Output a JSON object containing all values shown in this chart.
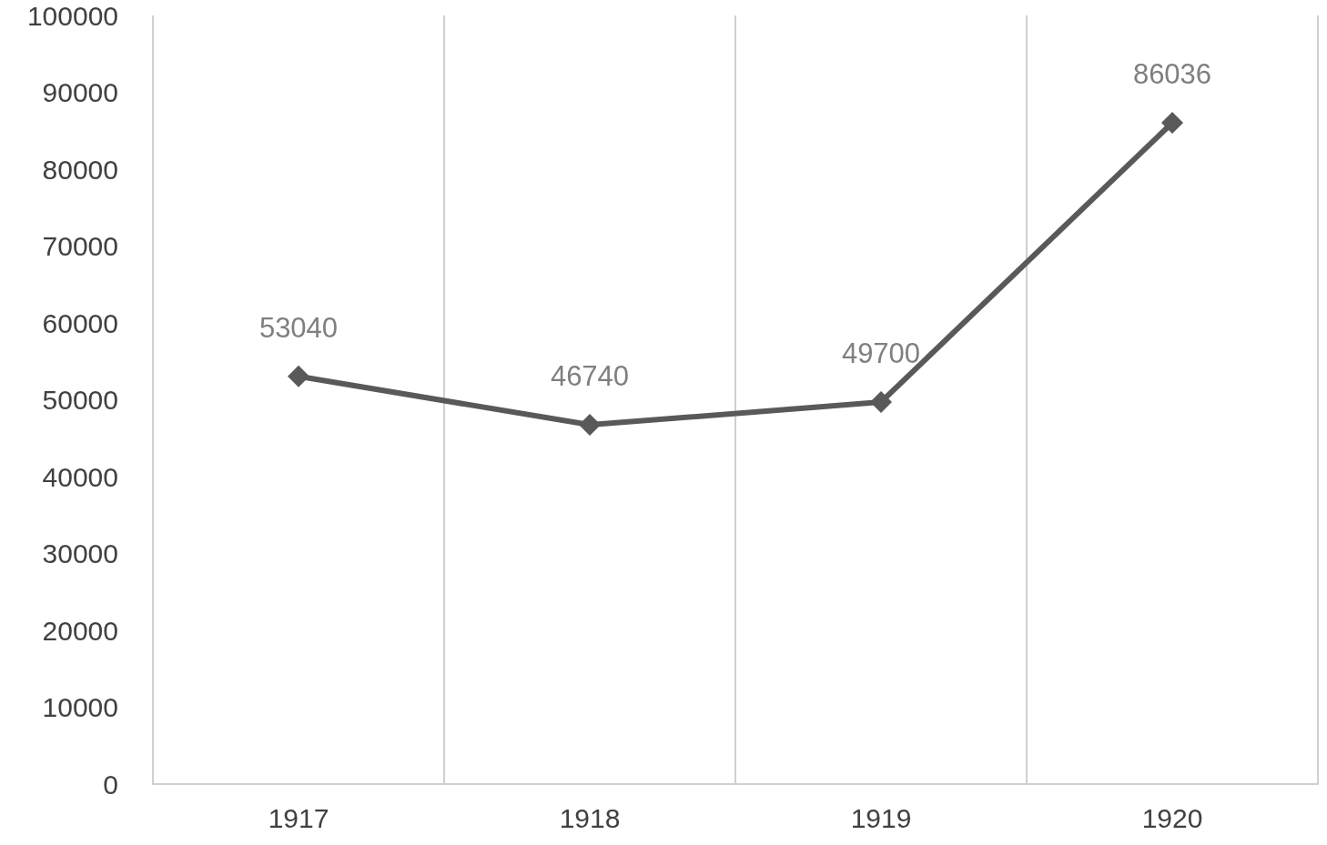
{
  "chart_data": {
    "type": "line",
    "categories": [
      "1917",
      "1918",
      "1919",
      "1920"
    ],
    "series": [
      {
        "color": "#595959",
        "values": [
          53040,
          46740,
          49700,
          86036
        ]
      }
    ],
    "ylim": [
      0,
      100000
    ],
    "yticks": [
      0,
      10000,
      20000,
      30000,
      40000,
      50000,
      60000,
      70000,
      80000,
      90000,
      100000
    ],
    "grid": "x",
    "marker": "diamond",
    "data_labels": true
  }
}
